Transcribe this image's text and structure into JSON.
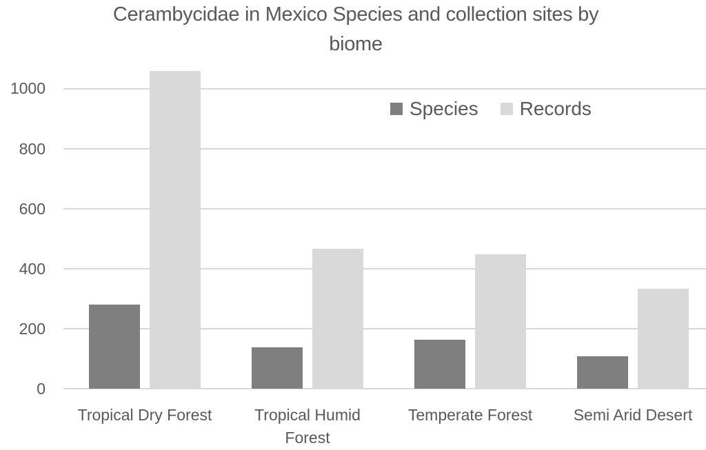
{
  "chart_data": {
    "type": "bar",
    "title": "Cerambycidae in Mexico Species and collection sites by biome",
    "title_lines": [
      "Cerambycidae in Mexico Species and collection sites by",
      "biome"
    ],
    "categories": [
      "Tropical Dry Forest",
      "Tropical Humid Forest",
      "Temperate Forest",
      "Semi Arid Desert"
    ],
    "category_lines": [
      [
        "Tropical Dry Forest"
      ],
      [
        "Tropical Humid",
        "Forest"
      ],
      [
        "Temperate Forest"
      ],
      [
        "Semi Arid Desert"
      ]
    ],
    "series": [
      {
        "name": "Species",
        "color": "#7f7f7f",
        "values": [
          279,
          138,
          163,
          108
        ]
      },
      {
        "name": "Records",
        "color": "#d9d9d9",
        "values": [
          1057,
          466,
          447,
          333
        ]
      }
    ],
    "xlabel": "",
    "ylabel": "",
    "ylim": [
      0,
      1000
    ],
    "yticks": [
      "0",
      "200",
      "400",
      "600",
      "800",
      "1000"
    ],
    "grid": true,
    "legend_position": "top-right inside plot"
  }
}
